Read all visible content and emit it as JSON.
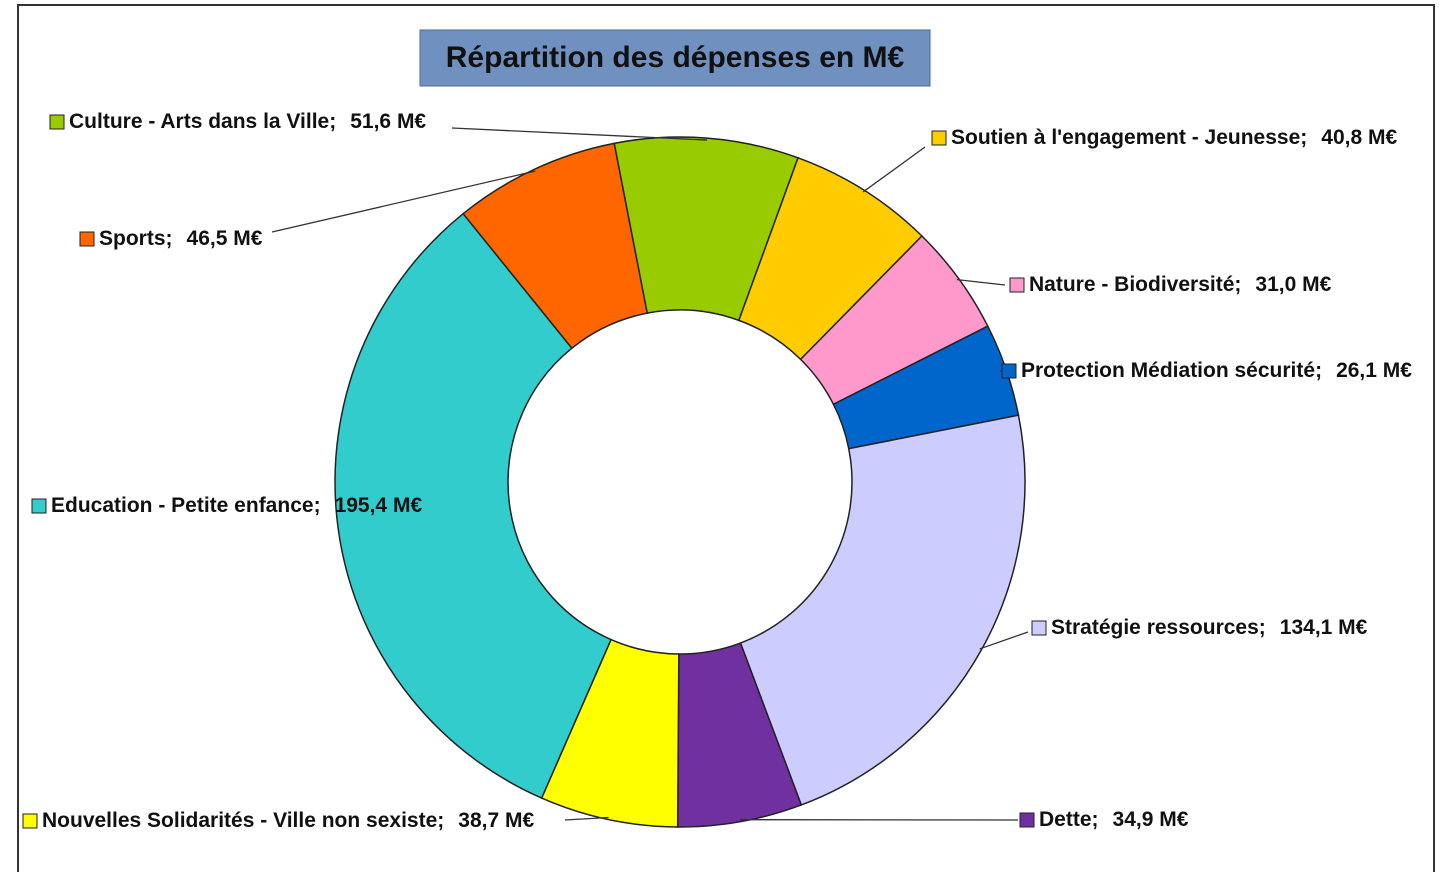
{
  "chart_data": {
    "type": "donut",
    "title": "Répartition des dépenses  en M€",
    "label_separator": ";",
    "categories": [
      "Culture - Arts dans la Ville",
      "Soutien à l'engagement - Jeunesse",
      "Nature - Biodiversité",
      "Protection Médiation sécurité",
      "Stratégie ressources",
      "Dette",
      "Nouvelles Solidarités - Ville non sexiste",
      "Education - Petite enfance",
      "Sports"
    ],
    "values": [
      51.6,
      40.8,
      31.0,
      26.1,
      134.1,
      34.9,
      38.7,
      195.4,
      46.5
    ],
    "value_labels": [
      "51,6 M€",
      "40,8 M€",
      "31,0 M€",
      "26,1 M€",
      "134,1 M€",
      "34,9 M€",
      "38,7 M€",
      "195,4 M€",
      "46,5 M€"
    ],
    "colors": [
      "#99cc00",
      "#ffcc00",
      "#ff99cc",
      "#0066cc",
      "#ccccff",
      "#7030a0",
      "#ffff00",
      "#33cccc",
      "#ff6600"
    ]
  }
}
